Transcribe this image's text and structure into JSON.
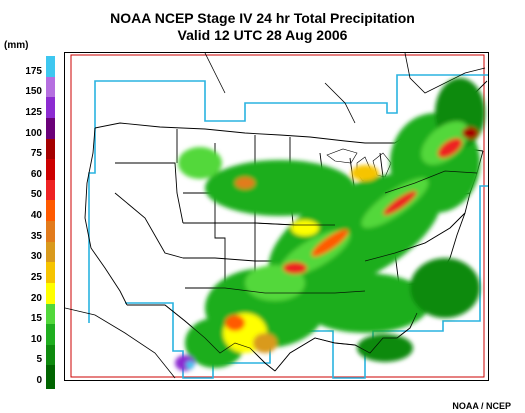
{
  "title_line1": "NOAA NCEP Stage IV 24 hr Total Precipitation",
  "title_line2": "Valid 12 UTC  28 Aug 2006",
  "unit_label": "(mm)",
  "credit": "NOAA / NCEP",
  "legend": [
    {
      "label": "175",
      "color": "#3ec7f0"
    },
    {
      "label": "150",
      "color": "#b56fe0"
    },
    {
      "label": "125",
      "color": "#8c2bd1"
    },
    {
      "label": "100",
      "color": "#6a0078"
    },
    {
      "label": "75",
      "color": "#a50000"
    },
    {
      "label": "60",
      "color": "#cc0000"
    },
    {
      "label": "50",
      "color": "#ee2222"
    },
    {
      "label": "40",
      "color": "#ff5a00"
    },
    {
      "label": "35",
      "color": "#e27b1c"
    },
    {
      "label": "30",
      "color": "#d99a1d"
    },
    {
      "label": "25",
      "color": "#f6c400"
    },
    {
      "label": "20",
      "color": "#ffff00"
    },
    {
      "label": "15",
      "color": "#52d83b"
    },
    {
      "label": "10",
      "color": "#1fae1f"
    },
    {
      "label": "5",
      "color": "#0e8a0e"
    },
    {
      "label": "0",
      "color": "#006400"
    }
  ],
  "colors": {
    "analysis_boundary": "#2ab3e0",
    "domain_box": "#cc0000",
    "borders": "#000000"
  }
}
